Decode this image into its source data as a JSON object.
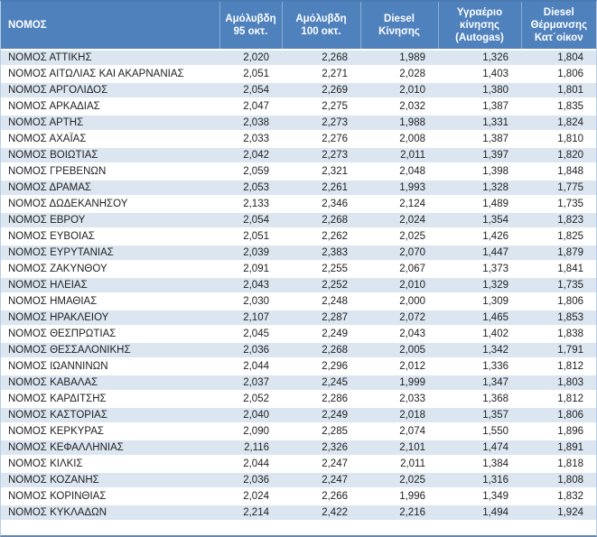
{
  "colors": {
    "header_bg": "#4f81bd",
    "header_text": "#ffffff",
    "row_alt_bg": "#dce6f1",
    "row_bg": "#ffffff",
    "body_text": "#1f1f1f",
    "bottom_border": "#6688ae"
  },
  "table": {
    "columns": [
      {
        "key": "name",
        "label": "ΝΟΜΟΣ"
      },
      {
        "key": "unleaded95",
        "label": "Αμόλυβδη 95 οκτ."
      },
      {
        "key": "unleaded100",
        "label": "Αμόλυβδη 100 οκτ."
      },
      {
        "key": "diesel",
        "label": "Diesel Κίνησης"
      },
      {
        "key": "autogas",
        "label": "Υγραέριο κίνησης (Autogas)"
      },
      {
        "key": "heating",
        "label": "Diesel Θέρμανσης Κατ΄οίκον"
      }
    ],
    "rows": [
      {
        "name": "ΝΟΜΟΣ ΑΤΤΙΚΗΣ",
        "values": [
          "2,020",
          "2,268",
          "1,989",
          "1,326",
          "1,804"
        ]
      },
      {
        "name": "ΝΟΜΟΣ ΑΙΤΩΛΙΑΣ ΚΑΙ ΑΚΑΡΝΑΝΙΑΣ",
        "values": [
          "2,051",
          "2,271",
          "2,028",
          "1,403",
          "1,806"
        ]
      },
      {
        "name": "ΝΟΜΟΣ ΑΡΓΟΛΙΔΟΣ",
        "values": [
          "2,054",
          "2,269",
          "2,010",
          "1,380",
          "1,801"
        ]
      },
      {
        "name": "ΝΟΜΟΣ ΑΡΚΑΔΙΑΣ",
        "values": [
          "2,047",
          "2,275",
          "2,032",
          "1,387",
          "1,835"
        ]
      },
      {
        "name": "ΝΟΜΟΣ ΑΡΤΗΣ",
        "values": [
          "2,038",
          "2,273",
          "1,988",
          "1,331",
          "1,824"
        ]
      },
      {
        "name": "ΝΟΜΟΣ ΑΧΑΪΑΣ",
        "values": [
          "2,033",
          "2,276",
          "2,008",
          "1,387",
          "1,810"
        ]
      },
      {
        "name": "ΝΟΜΟΣ ΒΟΙΩΤΙΑΣ",
        "values": [
          "2,042",
          "2,273",
          "2,011",
          "1,397",
          "1,820"
        ]
      },
      {
        "name": "ΝΟΜΟΣ ΓΡΕΒΕΝΩΝ",
        "values": [
          "2,059",
          "2,321",
          "2,048",
          "1,398",
          "1,848"
        ]
      },
      {
        "name": "ΝΟΜΟΣ ΔΡΑΜΑΣ",
        "values": [
          "2,053",
          "2,261",
          "1,993",
          "1,328",
          "1,775"
        ]
      },
      {
        "name": "ΝΟΜΟΣ ΔΩΔΕΚΑΝΗΣΟΥ",
        "values": [
          "2,133",
          "2,346",
          "2,124",
          "1,489",
          "1,735"
        ]
      },
      {
        "name": "ΝΟΜΟΣ ΕΒΡΟΥ",
        "values": [
          "2,054",
          "2,268",
          "2,024",
          "1,354",
          "1,823"
        ]
      },
      {
        "name": "ΝΟΜΟΣ ΕΥΒΟΙΑΣ",
        "values": [
          "2,051",
          "2,262",
          "2,025",
          "1,426",
          "1,825"
        ]
      },
      {
        "name": "ΝΟΜΟΣ ΕΥΡΥΤΑΝΙΑΣ",
        "values": [
          "2,039",
          "2,383",
          "2,070",
          "1,447",
          "1,879"
        ]
      },
      {
        "name": "ΝΟΜΟΣ ΖΑΚΥΝΘΟΥ",
        "values": [
          "2,091",
          "2,255",
          "2,067",
          "1,373",
          "1,841"
        ]
      },
      {
        "name": "ΝΟΜΟΣ ΗΛΕΙΑΣ",
        "values": [
          "2,043",
          "2,252",
          "2,010",
          "1,329",
          "1,735"
        ]
      },
      {
        "name": "ΝΟΜΟΣ ΗΜΑΘΙΑΣ",
        "values": [
          "2,030",
          "2,248",
          "2,000",
          "1,309",
          "1,806"
        ]
      },
      {
        "name": "ΝΟΜΟΣ ΗΡΑΚΛΕΙΟΥ",
        "values": [
          "2,107",
          "2,287",
          "2,072",
          "1,465",
          "1,853"
        ]
      },
      {
        "name": "ΝΟΜΟΣ ΘΕΣΠΡΩΤΙΑΣ",
        "values": [
          "2,045",
          "2,249",
          "2,043",
          "1,402",
          "1,838"
        ]
      },
      {
        "name": "ΝΟΜΟΣ ΘΕΣΣΑΛΟΝΙΚΗΣ",
        "values": [
          "2,036",
          "2,268",
          "2,005",
          "1,342",
          "1,791"
        ]
      },
      {
        "name": "ΝΟΜΟΣ ΙΩΑΝΝΙΝΩΝ",
        "values": [
          "2,044",
          "2,296",
          "2,012",
          "1,336",
          "1,812"
        ]
      },
      {
        "name": "ΝΟΜΟΣ ΚΑΒΑΛΑΣ",
        "values": [
          "2,037",
          "2,245",
          "1,999",
          "1,347",
          "1,803"
        ]
      },
      {
        "name": "ΝΟΜΟΣ ΚΑΡΔΙΤΣΗΣ",
        "values": [
          "2,052",
          "2,286",
          "2,033",
          "1,368",
          "1,812"
        ]
      },
      {
        "name": "ΝΟΜΟΣ ΚΑΣΤΟΡΙΑΣ",
        "values": [
          "2,040",
          "2,249",
          "2,018",
          "1,357",
          "1,806"
        ]
      },
      {
        "name": "ΝΟΜΟΣ ΚΕΡΚΥΡΑΣ",
        "values": [
          "2,090",
          "2,285",
          "2,074",
          "1,550",
          "1,896"
        ]
      },
      {
        "name": "ΝΟΜΟΣ ΚΕΦΑΛΛΗΝΙΑΣ",
        "values": [
          "2,116",
          "2,326",
          "2,101",
          "1,474",
          "1,891"
        ]
      },
      {
        "name": "ΝΟΜΟΣ ΚΙΛΚΙΣ",
        "values": [
          "2,044",
          "2,247",
          "2,011",
          "1,384",
          "1,818"
        ]
      },
      {
        "name": "ΝΟΜΟΣ ΚΟΖΑΝΗΣ",
        "values": [
          "2,036",
          "2,247",
          "2,025",
          "1,316",
          "1,808"
        ]
      },
      {
        "name": "ΝΟΜΟΣ ΚΟΡΙΝΘΙΑΣ",
        "values": [
          "2,024",
          "2,266",
          "1,996",
          "1,349",
          "1,832"
        ]
      },
      {
        "name": "ΝΟΜΟΣ ΚΥΚΛΑΔΩΝ",
        "values": [
          "2,214",
          "2,422",
          "2,216",
          "1,494",
          "1,924"
        ]
      }
    ]
  },
  "chart_data": {
    "type": "table",
    "title": "",
    "categories": [
      "ΝΟΜΟΣ",
      "Αμόλυβδη 95 οκτ.",
      "Αμόλυβδη 100 οκτ.",
      "Diesel Κίνησης",
      "Υγραέριο κίνησης (Autogas)",
      "Diesel Θέρμανσης Κατ΄οίκον"
    ],
    "series": [
      {
        "name": "Αμόλυβδη 95 οκτ.",
        "values": [
          2.02,
          2.051,
          2.054,
          2.047,
          2.038,
          2.033,
          2.042,
          2.059,
          2.053,
          2.133,
          2.054,
          2.051,
          2.039,
          2.091,
          2.043,
          2.03,
          2.107,
          2.045,
          2.036,
          2.044,
          2.037,
          2.052,
          2.04,
          2.09,
          2.116,
          2.044,
          2.036,
          2.024,
          2.214
        ]
      },
      {
        "name": "Αμόλυβδη 100 οκτ.",
        "values": [
          2.268,
          2.271,
          2.269,
          2.275,
          2.273,
          2.276,
          2.273,
          2.321,
          2.261,
          2.346,
          2.268,
          2.262,
          2.383,
          2.255,
          2.252,
          2.248,
          2.287,
          2.249,
          2.268,
          2.296,
          2.245,
          2.286,
          2.249,
          2.285,
          2.326,
          2.247,
          2.247,
          2.266,
          2.422
        ]
      },
      {
        "name": "Diesel Κίνησης",
        "values": [
          1.989,
          2.028,
          2.01,
          2.032,
          1.988,
          2.008,
          2.011,
          2.048,
          1.993,
          2.124,
          2.024,
          2.025,
          2.07,
          2.067,
          2.01,
          2.0,
          2.072,
          2.043,
          2.005,
          2.012,
          1.999,
          2.033,
          2.018,
          2.074,
          2.101,
          2.011,
          2.025,
          1.996,
          2.216
        ]
      },
      {
        "name": "Υγραέριο κίνησης (Autogas)",
        "values": [
          1.326,
          1.403,
          1.38,
          1.387,
          1.331,
          1.387,
          1.397,
          1.398,
          1.328,
          1.489,
          1.354,
          1.426,
          1.447,
          1.373,
          1.329,
          1.309,
          1.465,
          1.402,
          1.342,
          1.336,
          1.347,
          1.368,
          1.357,
          1.55,
          1.474,
          1.384,
          1.316,
          1.349,
          1.494
        ]
      },
      {
        "name": "Diesel Θέρμανσης Κατ΄οίκον",
        "values": [
          1.804,
          1.806,
          1.801,
          1.835,
          1.824,
          1.81,
          1.82,
          1.848,
          1.775,
          1.735,
          1.823,
          1.825,
          1.879,
          1.841,
          1.735,
          1.806,
          1.853,
          1.838,
          1.791,
          1.812,
          1.803,
          1.812,
          1.806,
          1.896,
          1.891,
          1.818,
          1.808,
          1.832,
          1.924
        ]
      }
    ],
    "row_labels": [
      "ΝΟΜΟΣ ΑΤΤΙΚΗΣ",
      "ΝΟΜΟΣ ΑΙΤΩΛΙΑΣ ΚΑΙ ΑΚΑΡΝΑΝΙΑΣ",
      "ΝΟΜΟΣ ΑΡΓΟΛΙΔΟΣ",
      "ΝΟΜΟΣ ΑΡΚΑΔΙΑΣ",
      "ΝΟΜΟΣ ΑΡΤΗΣ",
      "ΝΟΜΟΣ ΑΧΑΪΑΣ",
      "ΝΟΜΟΣ ΒΟΙΩΤΙΑΣ",
      "ΝΟΜΟΣ ΓΡΕΒΕΝΩΝ",
      "ΝΟΜΟΣ ΔΡΑΜΑΣ",
      "ΝΟΜΟΣ ΔΩΔΕΚΑΝΗΣΟΥ",
      "ΝΟΜΟΣ ΕΒΡΟΥ",
      "ΝΟΜΟΣ ΕΥΒΟΙΑΣ",
      "ΝΟΜΟΣ ΕΥΡΥΤΑΝΙΑΣ",
      "ΝΟΜΟΣ ΖΑΚΥΝΘΟΥ",
      "ΝΟΜΟΣ ΗΛΕΙΑΣ",
      "ΝΟΜΟΣ ΗΜΑΘΙΑΣ",
      "ΝΟΜΟΣ ΗΡΑΚΛΕΙΟΥ",
      "ΝΟΜΟΣ ΘΕΣΠΡΩΤΙΑΣ",
      "ΝΟΜΟΣ ΘΕΣΣΑΛΟΝΙΚΗΣ",
      "ΝΟΜΟΣ ΙΩΑΝΝΙΝΩΝ",
      "ΝΟΜΟΣ ΚΑΒΑΛΑΣ",
      "ΝΟΜΟΣ ΚΑΡΔΙΤΣΗΣ",
      "ΝΟΜΟΣ ΚΑΣΤΟΡΙΑΣ",
      "ΝΟΜΟΣ ΚΕΡΚΥΡΑΣ",
      "ΝΟΜΟΣ ΚΕΦΑΛΛΗΝΙΑΣ",
      "ΝΟΜΟΣ ΚΙΛΚΙΣ",
      "ΝΟΜΟΣ ΚΟΖΑΝΗΣ",
      "ΝΟΜΟΣ ΚΟΡΙΝΘΙΑΣ",
      "ΝΟΜΟΣ ΚΥΚΛΑΔΩΝ"
    ],
    "layout": {
      "header_style": "blue banded table",
      "decimal_separator": ",",
      "grid": "horizontal bands"
    }
  }
}
